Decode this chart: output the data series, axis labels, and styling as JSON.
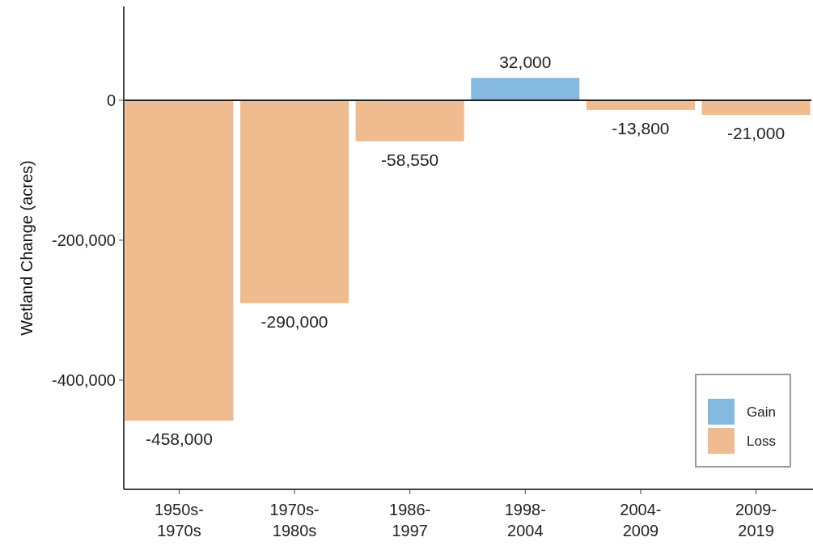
{
  "chart_data": {
    "type": "bar",
    "ylabel": "Wetland Change (acres)",
    "categories": [
      "1950s-1970s",
      "1970s-1980s",
      "1986-1997",
      "1998-2004",
      "2004-2009",
      "2009-2019"
    ],
    "series": [
      {
        "name": "Gain",
        "color": "#86b9e0",
        "values": [
          null,
          null,
          null,
          32000,
          null,
          null
        ],
        "value_labels": [
          null,
          null,
          null,
          "32,000",
          null,
          null
        ]
      },
      {
        "name": "Loss",
        "color": "#f0bb8f",
        "values": [
          -458000,
          -290000,
          -58550,
          null,
          -13800,
          -21000
        ],
        "value_labels": [
          "-458,000",
          "-290,000",
          "-58,550",
          null,
          "-13,800",
          "-21,000"
        ]
      }
    ],
    "ylim": [
      -556000,
      134000
    ],
    "yticks": [
      {
        "value": 0,
        "label": "0"
      },
      {
        "value": -200000,
        "label": "-200,000"
      },
      {
        "value": -400000,
        "label": "-400,000"
      }
    ],
    "ref_lines": [
      {
        "axis": "y",
        "value": 0
      }
    ],
    "grid": false,
    "legend": "bottom right"
  }
}
